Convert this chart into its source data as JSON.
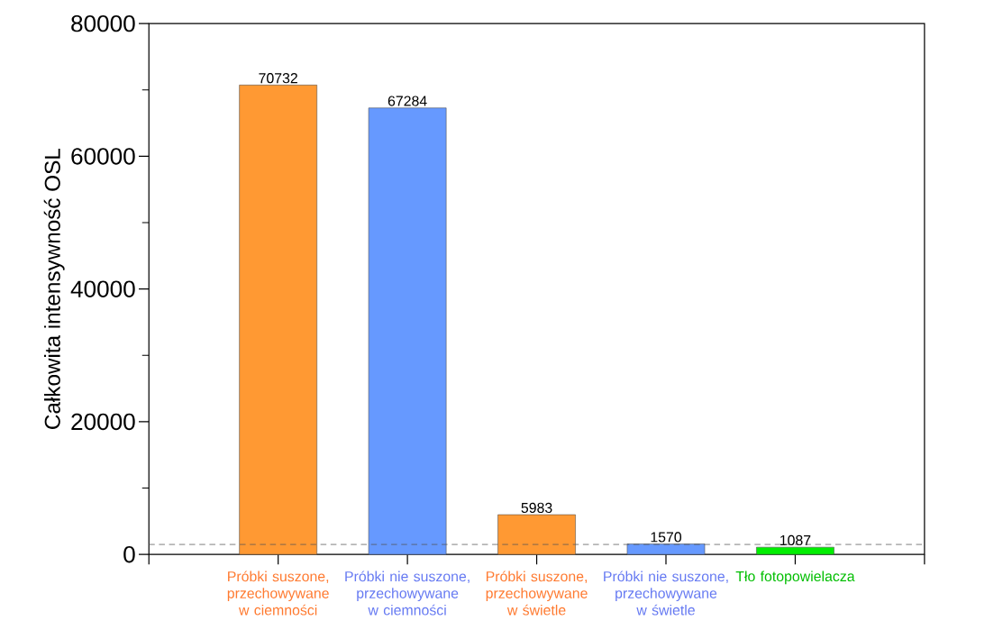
{
  "chart_data": {
    "type": "bar",
    "ylabel": "Całkowita intensywność OSL",
    "categories": [
      "Próbki suszone, przechowywane w ciemności",
      "Próbki nie suszone, przechowywane w ciemności",
      "Próbki suszone, przechowywane w świetle",
      "Próbki nie suszone, przechowywane w świetle",
      "Tło fotopowielacza"
    ],
    "values": [
      70732,
      67284,
      5983,
      1570,
      1087
    ],
    "colors": [
      "#ff9933",
      "#6699ff",
      "#ff9933",
      "#6699ff",
      "#00ee00"
    ],
    "ylim": [
      0,
      80000
    ],
    "yticks": [
      0,
      20000,
      40000,
      60000,
      80000
    ],
    "data_labels": true,
    "grid": false,
    "ref_lines": [
      {
        "axis": "y",
        "value": 1500,
        "color": "#555555",
        "line_style": "dashed"
      }
    ]
  }
}
